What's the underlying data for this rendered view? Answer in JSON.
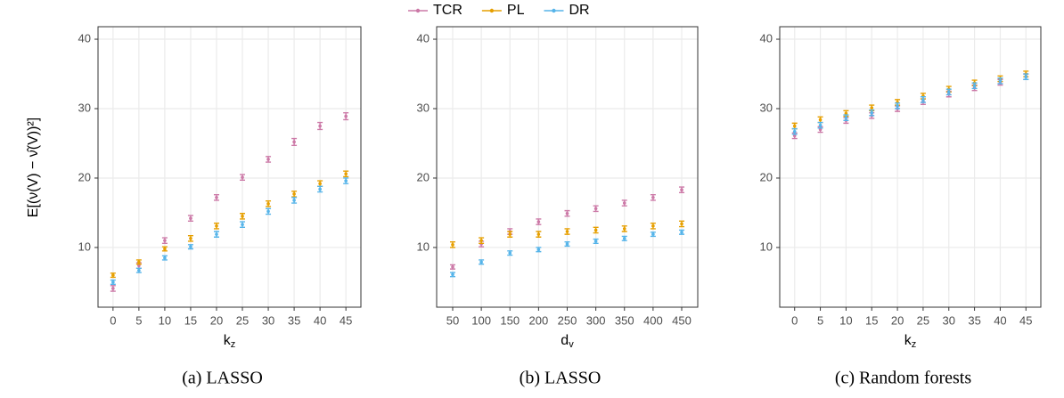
{
  "chart_data": [
    {
      "type": "errorbar",
      "caption": "(a) LASSO",
      "x_label": "k",
      "x_label_sub": "z",
      "y_label": "E[(ν(V) − ν̂(V))²]",
      "x": [
        0,
        5,
        10,
        15,
        20,
        25,
        30,
        35,
        40,
        45
      ],
      "xlim": [
        -2.9,
        47.9
      ],
      "xticks": [
        0,
        5,
        10,
        15,
        20,
        25,
        30,
        35,
        40,
        45
      ],
      "ylim": [
        1.4,
        41.8
      ],
      "yticks": [
        10,
        20,
        30,
        40
      ],
      "grid": true,
      "series": [
        {
          "name": "TCR",
          "color": "#cc79a7",
          "values": [
            4.1,
            7.4,
            11.0,
            14.2,
            17.2,
            20.1,
            22.7,
            25.2,
            27.5,
            28.9
          ],
          "errors": [
            0.4,
            0.4,
            0.4,
            0.4,
            0.4,
            0.4,
            0.4,
            0.5,
            0.5,
            0.5
          ]
        },
        {
          "name": "PL",
          "color": "#e69f00",
          "values": [
            6.0,
            7.9,
            9.8,
            11.3,
            13.1,
            14.5,
            16.3,
            17.7,
            19.2,
            20.6
          ],
          "errors": [
            0.3,
            0.3,
            0.3,
            0.4,
            0.4,
            0.4,
            0.4,
            0.4,
            0.4,
            0.4
          ]
        },
        {
          "name": "DR",
          "color": "#56b4e9",
          "values": [
            5.0,
            6.7,
            8.5,
            10.1,
            11.9,
            13.3,
            15.2,
            16.8,
            18.4,
            19.6
          ],
          "errors": [
            0.3,
            0.3,
            0.3,
            0.3,
            0.4,
            0.4,
            0.4,
            0.4,
            0.4,
            0.4
          ]
        }
      ]
    },
    {
      "type": "errorbar",
      "caption": "(b) LASSO",
      "x_label": "d",
      "x_label_sub": "v",
      "x": [
        50,
        100,
        150,
        200,
        250,
        300,
        350,
        400,
        450
      ],
      "xlim": [
        22,
        478
      ],
      "xticks": [
        50,
        100,
        150,
        200,
        250,
        300,
        350,
        400,
        450
      ],
      "ylim": [
        1.4,
        41.8
      ],
      "yticks": [
        10,
        20,
        30,
        40
      ],
      "grid": true,
      "series": [
        {
          "name": "TCR",
          "color": "#cc79a7",
          "values": [
            7.2,
            10.5,
            12.3,
            13.7,
            14.9,
            15.6,
            16.4,
            17.2,
            18.3
          ],
          "errors": [
            0.3,
            0.4,
            0.4,
            0.4,
            0.4,
            0.4,
            0.4,
            0.4,
            0.4
          ]
        },
        {
          "name": "PL",
          "color": "#e69f00",
          "values": [
            10.4,
            11.0,
            11.9,
            11.9,
            12.3,
            12.5,
            12.7,
            13.1,
            13.4
          ],
          "errors": [
            0.4,
            0.4,
            0.4,
            0.4,
            0.4,
            0.4,
            0.4,
            0.4,
            0.4
          ]
        },
        {
          "name": "DR",
          "color": "#56b4e9",
          "values": [
            6.1,
            7.9,
            9.2,
            9.7,
            10.5,
            10.9,
            11.3,
            11.9,
            12.2
          ],
          "errors": [
            0.3,
            0.3,
            0.3,
            0.3,
            0.3,
            0.3,
            0.3,
            0.3,
            0.3
          ]
        }
      ]
    },
    {
      "type": "errorbar",
      "caption": "(c) Random forests",
      "x_label": "k",
      "x_label_sub": "z",
      "x": [
        0,
        5,
        10,
        15,
        20,
        25,
        30,
        35,
        40,
        45
      ],
      "xlim": [
        -2.9,
        47.9
      ],
      "xticks": [
        0,
        5,
        10,
        15,
        20,
        25,
        30,
        35,
        40,
        45
      ],
      "ylim": [
        1.4,
        41.8
      ],
      "yticks": [
        10,
        20,
        30,
        40
      ],
      "grid": true,
      "series": [
        {
          "name": "TCR",
          "color": "#cc79a7",
          "values": [
            26.1,
            27.0,
            28.3,
            29.0,
            30.0,
            31.0,
            32.1,
            33.0,
            33.8,
            34.6
          ],
          "errors": [
            0.4,
            0.4,
            0.4,
            0.4,
            0.4,
            0.4,
            0.4,
            0.4,
            0.4,
            0.4
          ]
        },
        {
          "name": "PL",
          "color": "#e69f00",
          "values": [
            27.5,
            28.4,
            29.3,
            30.1,
            30.9,
            31.8,
            32.8,
            33.7,
            34.3,
            35.0
          ],
          "errors": [
            0.4,
            0.4,
            0.4,
            0.4,
            0.4,
            0.4,
            0.4,
            0.4,
            0.4,
            0.4
          ]
        },
        {
          "name": "DR",
          "color": "#56b4e9",
          "values": [
            26.7,
            27.6,
            28.7,
            29.4,
            30.4,
            31.3,
            32.4,
            33.3,
            34.0,
            34.6
          ],
          "errors": [
            0.4,
            0.4,
            0.4,
            0.4,
            0.4,
            0.4,
            0.4,
            0.4,
            0.4,
            0.4
          ]
        }
      ]
    }
  ]
}
